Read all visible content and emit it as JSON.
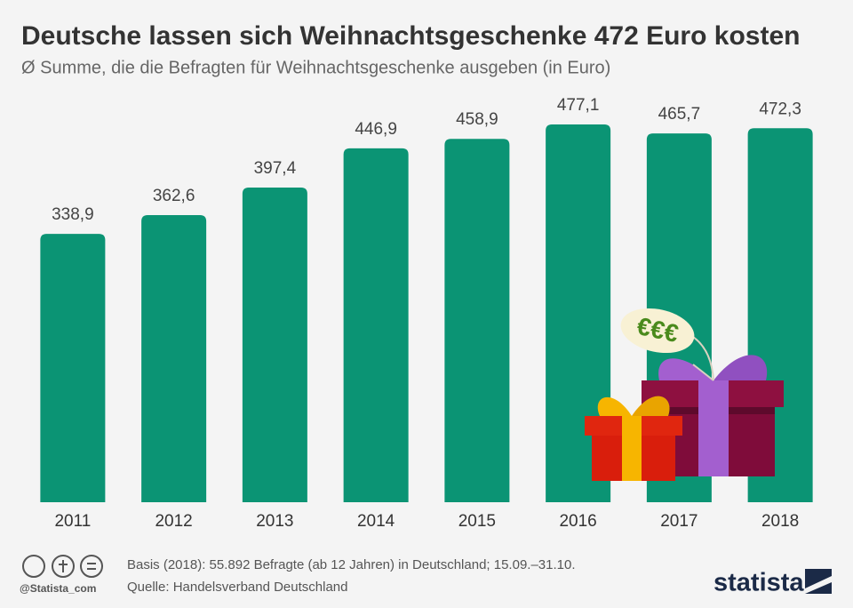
{
  "chart_data": {
    "type": "bar",
    "title": "Deutsche lassen sich Weihnachtsgeschenke 472 Euro kosten",
    "subtitle": "Ø Summe, die die Befragten für Weihnachtsgeschenke ausgeben (in Euro)",
    "categories": [
      "2011",
      "2012",
      "2013",
      "2014",
      "2015",
      "2016",
      "2017",
      "2018"
    ],
    "values": [
      338.9,
      362.6,
      397.4,
      446.9,
      458.9,
      477.1,
      465.7,
      472.3
    ],
    "value_labels": [
      "338,9",
      "362,6",
      "397,4",
      "446,9",
      "458,9",
      "477,1",
      "465,7",
      "472,3"
    ],
    "color": "#0b9474",
    "illustration_label": "€€€",
    "note": "Basis (2018): 55.892 Befragte (ab 12 Jahren) in Deutschland; 15.09.–31.10.",
    "source": "Quelle: Handelsverband Deutschland",
    "credit": "@Statista_com",
    "brand": "statista"
  }
}
